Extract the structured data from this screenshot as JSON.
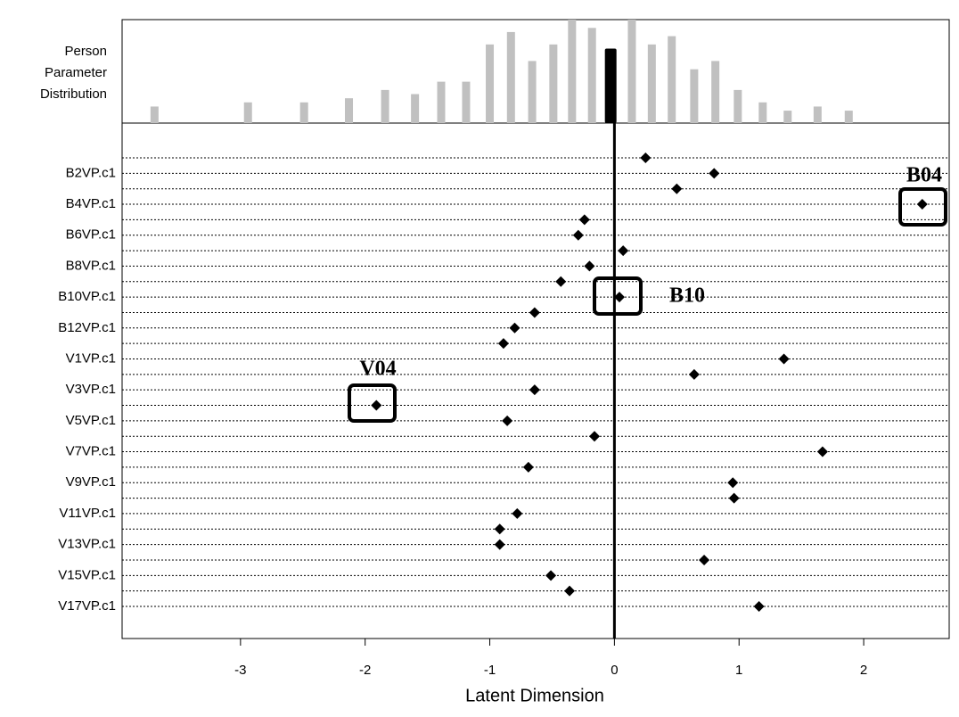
{
  "chart_data": {
    "type": "wright-map",
    "hist_label_lines": [
      "Person",
      "Parameter",
      "Distribution"
    ],
    "xlabel": "Latent Dimension",
    "xlim": [
      -3.95,
      2.686
    ],
    "xticks": [
      -3,
      -2,
      -1,
      0,
      1,
      2
    ],
    "person_hist": {
      "color": "#c0c0c0",
      "ylim": [
        0,
        25
      ],
      "x": [
        -3.69,
        -2.94,
        -2.49,
        -2.13,
        -1.84,
        -1.6,
        -1.39,
        -1.19,
        -1.0,
        -0.83,
        -0.66,
        -0.49,
        -0.34,
        -0.18,
        0.14,
        0.3,
        0.46,
        0.64,
        0.81,
        0.99,
        1.19,
        1.39,
        1.63,
        1.88
      ],
      "values": [
        4,
        5,
        5,
        6,
        8,
        7,
        10,
        10,
        19,
        22,
        15,
        19,
        25,
        23,
        25,
        19,
        21,
        13,
        15,
        8,
        5,
        3,
        4,
        3
      ]
    },
    "person_mean": {
      "x": -0.03,
      "value": 18,
      "color": "#000000"
    },
    "reference_line": 0,
    "items": {
      "color": "#000000",
      "categories": [
        null,
        "B2VP.c1",
        null,
        "B4VP.c1",
        null,
        "B6VP.c1",
        null,
        "B8VP.c1",
        null,
        "B10VP.c1",
        null,
        "B12VP.c1",
        null,
        "V1VP.c1",
        null,
        "V3VP.c1",
        null,
        "V5VP.c1",
        null,
        "V7VP.c1",
        null,
        "V9VP.c1",
        null,
        "V11VP.c1",
        null,
        "V13VP.c1",
        null,
        "V15VP.c1",
        null,
        "V17VP.c1"
      ],
      "values": [
        0.25,
        0.8,
        0.5,
        2.47,
        -0.24,
        -0.29,
        0.07,
        -0.2,
        -0.43,
        0.04,
        -0.64,
        -0.8,
        -0.89,
        1.36,
        0.64,
        -0.64,
        -1.91,
        -0.86,
        -0.16,
        1.67,
        -0.69,
        0.95,
        0.96,
        -0.78,
        -0.92,
        -0.92,
        0.72,
        -0.51,
        -0.36,
        1.16
      ]
    },
    "annotations": [
      "B04",
      "B10",
      "V04"
    ]
  }
}
